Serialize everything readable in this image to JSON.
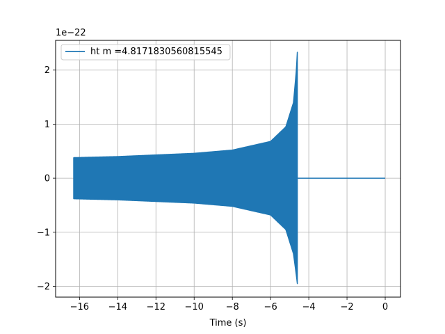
{
  "chart_data": {
    "type": "line",
    "title": "",
    "xlabel": "Time (s)",
    "ylabel": "",
    "y_offset_text": "1e−22",
    "xlim": [
      -17.25,
      0.8
    ],
    "ylim": [
      -2.2,
      2.55
    ],
    "xticks": [
      -16,
      -14,
      -12,
      -10,
      -8,
      -6,
      -4,
      -2,
      0
    ],
    "xtick_labels": [
      "−16",
      "−14",
      "−12",
      "−10",
      "−8",
      "−6",
      "−4",
      "−2",
      "0"
    ],
    "yticks": [
      -2,
      -1,
      0,
      1,
      2
    ],
    "ytick_labels": [
      "−2",
      "−1",
      "0",
      "1",
      "2"
    ],
    "grid": true,
    "legend_placement": "top-left",
    "series": [
      {
        "name": "ht m =4.8171830560815545",
        "color": "#1f77b4",
        "style": "dense-oscillation",
        "x_start": -16.3,
        "x_merger": -4.6,
        "x_end": 0,
        "envelope_upper": [
          [
            -16.3,
            0.38
          ],
          [
            -14,
            0.4
          ],
          [
            -12,
            0.43
          ],
          [
            -10,
            0.46
          ],
          [
            -8,
            0.52
          ],
          [
            -6,
            0.68
          ],
          [
            -5.2,
            0.95
          ],
          [
            -4.8,
            1.4
          ],
          [
            -4.65,
            2.0
          ],
          [
            -4.6,
            2.33
          ]
        ],
        "envelope_lower": [
          [
            -16.3,
            -0.38
          ],
          [
            -14,
            -0.4
          ],
          [
            -12,
            -0.43
          ],
          [
            -10,
            -0.46
          ],
          [
            -8,
            -0.52
          ],
          [
            -6,
            -0.68
          ],
          [
            -5.2,
            -0.95
          ],
          [
            -4.8,
            -1.4
          ],
          [
            -4.65,
            -1.8
          ],
          [
            -4.6,
            -1.95
          ]
        ],
        "post_merger_value": 0
      }
    ]
  }
}
